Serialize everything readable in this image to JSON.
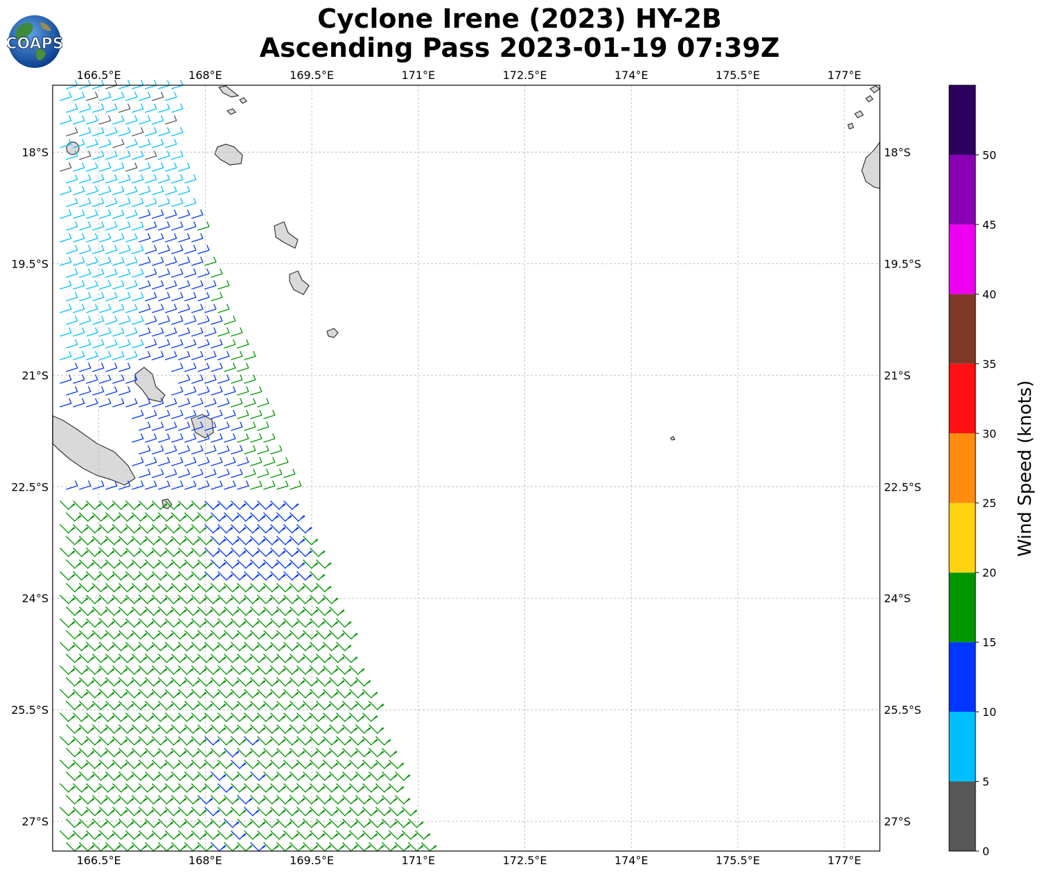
{
  "header": {
    "title_line1": "Cyclone Irene (2023) HY-2B",
    "title_line2": "Ascending Pass 2023-01-19 07:39Z",
    "logo_text": "COAPS"
  },
  "map": {
    "lon_ticks": [
      "166.5°E",
      "168°E",
      "169.5°E",
      "171°E",
      "172.5°E",
      "174°E",
      "175.5°E",
      "177°E"
    ],
    "lat_ticks": [
      "18°S",
      "19.5°S",
      "21°S",
      "22.5°S",
      "24°S",
      "25.5°S",
      "27°S"
    ],
    "lon_values": [
      166.5,
      168,
      169.5,
      171,
      172.5,
      174,
      175.5,
      177
    ],
    "lat_values": [
      -18,
      -19.5,
      -21,
      -22.5,
      -24,
      -25.5,
      -27
    ],
    "extent": {
      "lon": [
        165.85,
        177.5
      ],
      "lat": [
        -17.1,
        -27.4
      ]
    },
    "gridlines": true,
    "land_color": "#d9d9d9",
    "coast_color": "#333333"
  },
  "colorbar": {
    "label": "Wind Speed (knots)",
    "ticks": [
      "0",
      "5",
      "10",
      "15",
      "20",
      "25",
      "30",
      "35",
      "40",
      "45",
      "50"
    ],
    "bins": [
      {
        "min": 0,
        "max": 5,
        "color": "#575757"
      },
      {
        "min": 5,
        "max": 10,
        "color": "#00bfff"
      },
      {
        "min": 10,
        "max": 15,
        "color": "#0036ff"
      },
      {
        "min": 15,
        "max": 20,
        "color": "#009600"
      },
      {
        "min": 20,
        "max": 25,
        "color": "#ffd312"
      },
      {
        "min": 25,
        "max": 30,
        "color": "#ff8c0f"
      },
      {
        "min": 30,
        "max": 35,
        "color": "#ff1111"
      },
      {
        "min": 35,
        "max": 40,
        "color": "#7e3828"
      },
      {
        "min": 40,
        "max": 45,
        "color": "#f000f0"
      },
      {
        "min": 45,
        "max": 50,
        "color": "#8a00b5"
      },
      {
        "min": 50,
        "max": 55,
        "color": "#2d005f"
      }
    ]
  }
}
